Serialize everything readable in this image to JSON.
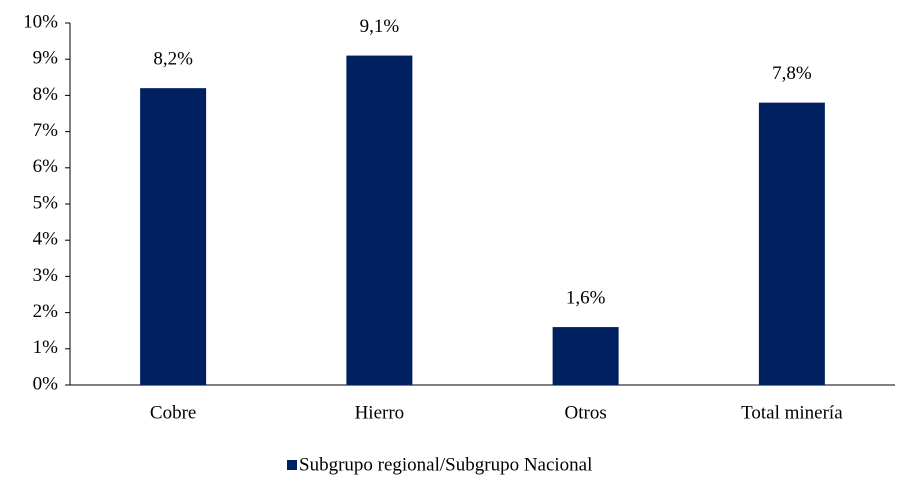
{
  "chart_data": {
    "type": "bar",
    "categories": [
      "Cobre",
      "Hierro",
      "Otros",
      "Total minería"
    ],
    "series": [
      {
        "name": "Subgrupo regional/Subgrupo Nacional",
        "color": "#002060",
        "values": [
          8.2,
          9.1,
          1.6,
          7.8
        ],
        "value_labels": [
          "8,2%",
          "9,1%",
          "1,6%",
          "7,8%"
        ]
      }
    ],
    "ylim": [
      0,
      10
    ],
    "yticks": [
      {
        "value": 0,
        "label": "0%"
      },
      {
        "value": 1,
        "label": "1%"
      },
      {
        "value": 2,
        "label": "2%"
      },
      {
        "value": 3,
        "label": "3%"
      },
      {
        "value": 4,
        "label": "4%"
      },
      {
        "value": 5,
        "label": "5%"
      },
      {
        "value": 6,
        "label": "6%"
      },
      {
        "value": 7,
        "label": "7%"
      },
      {
        "value": 8,
        "label": "8%"
      },
      {
        "value": 9,
        "label": "9%"
      },
      {
        "value": 10,
        "label": "10%"
      }
    ],
    "grid": false,
    "legend": "bottom"
  }
}
